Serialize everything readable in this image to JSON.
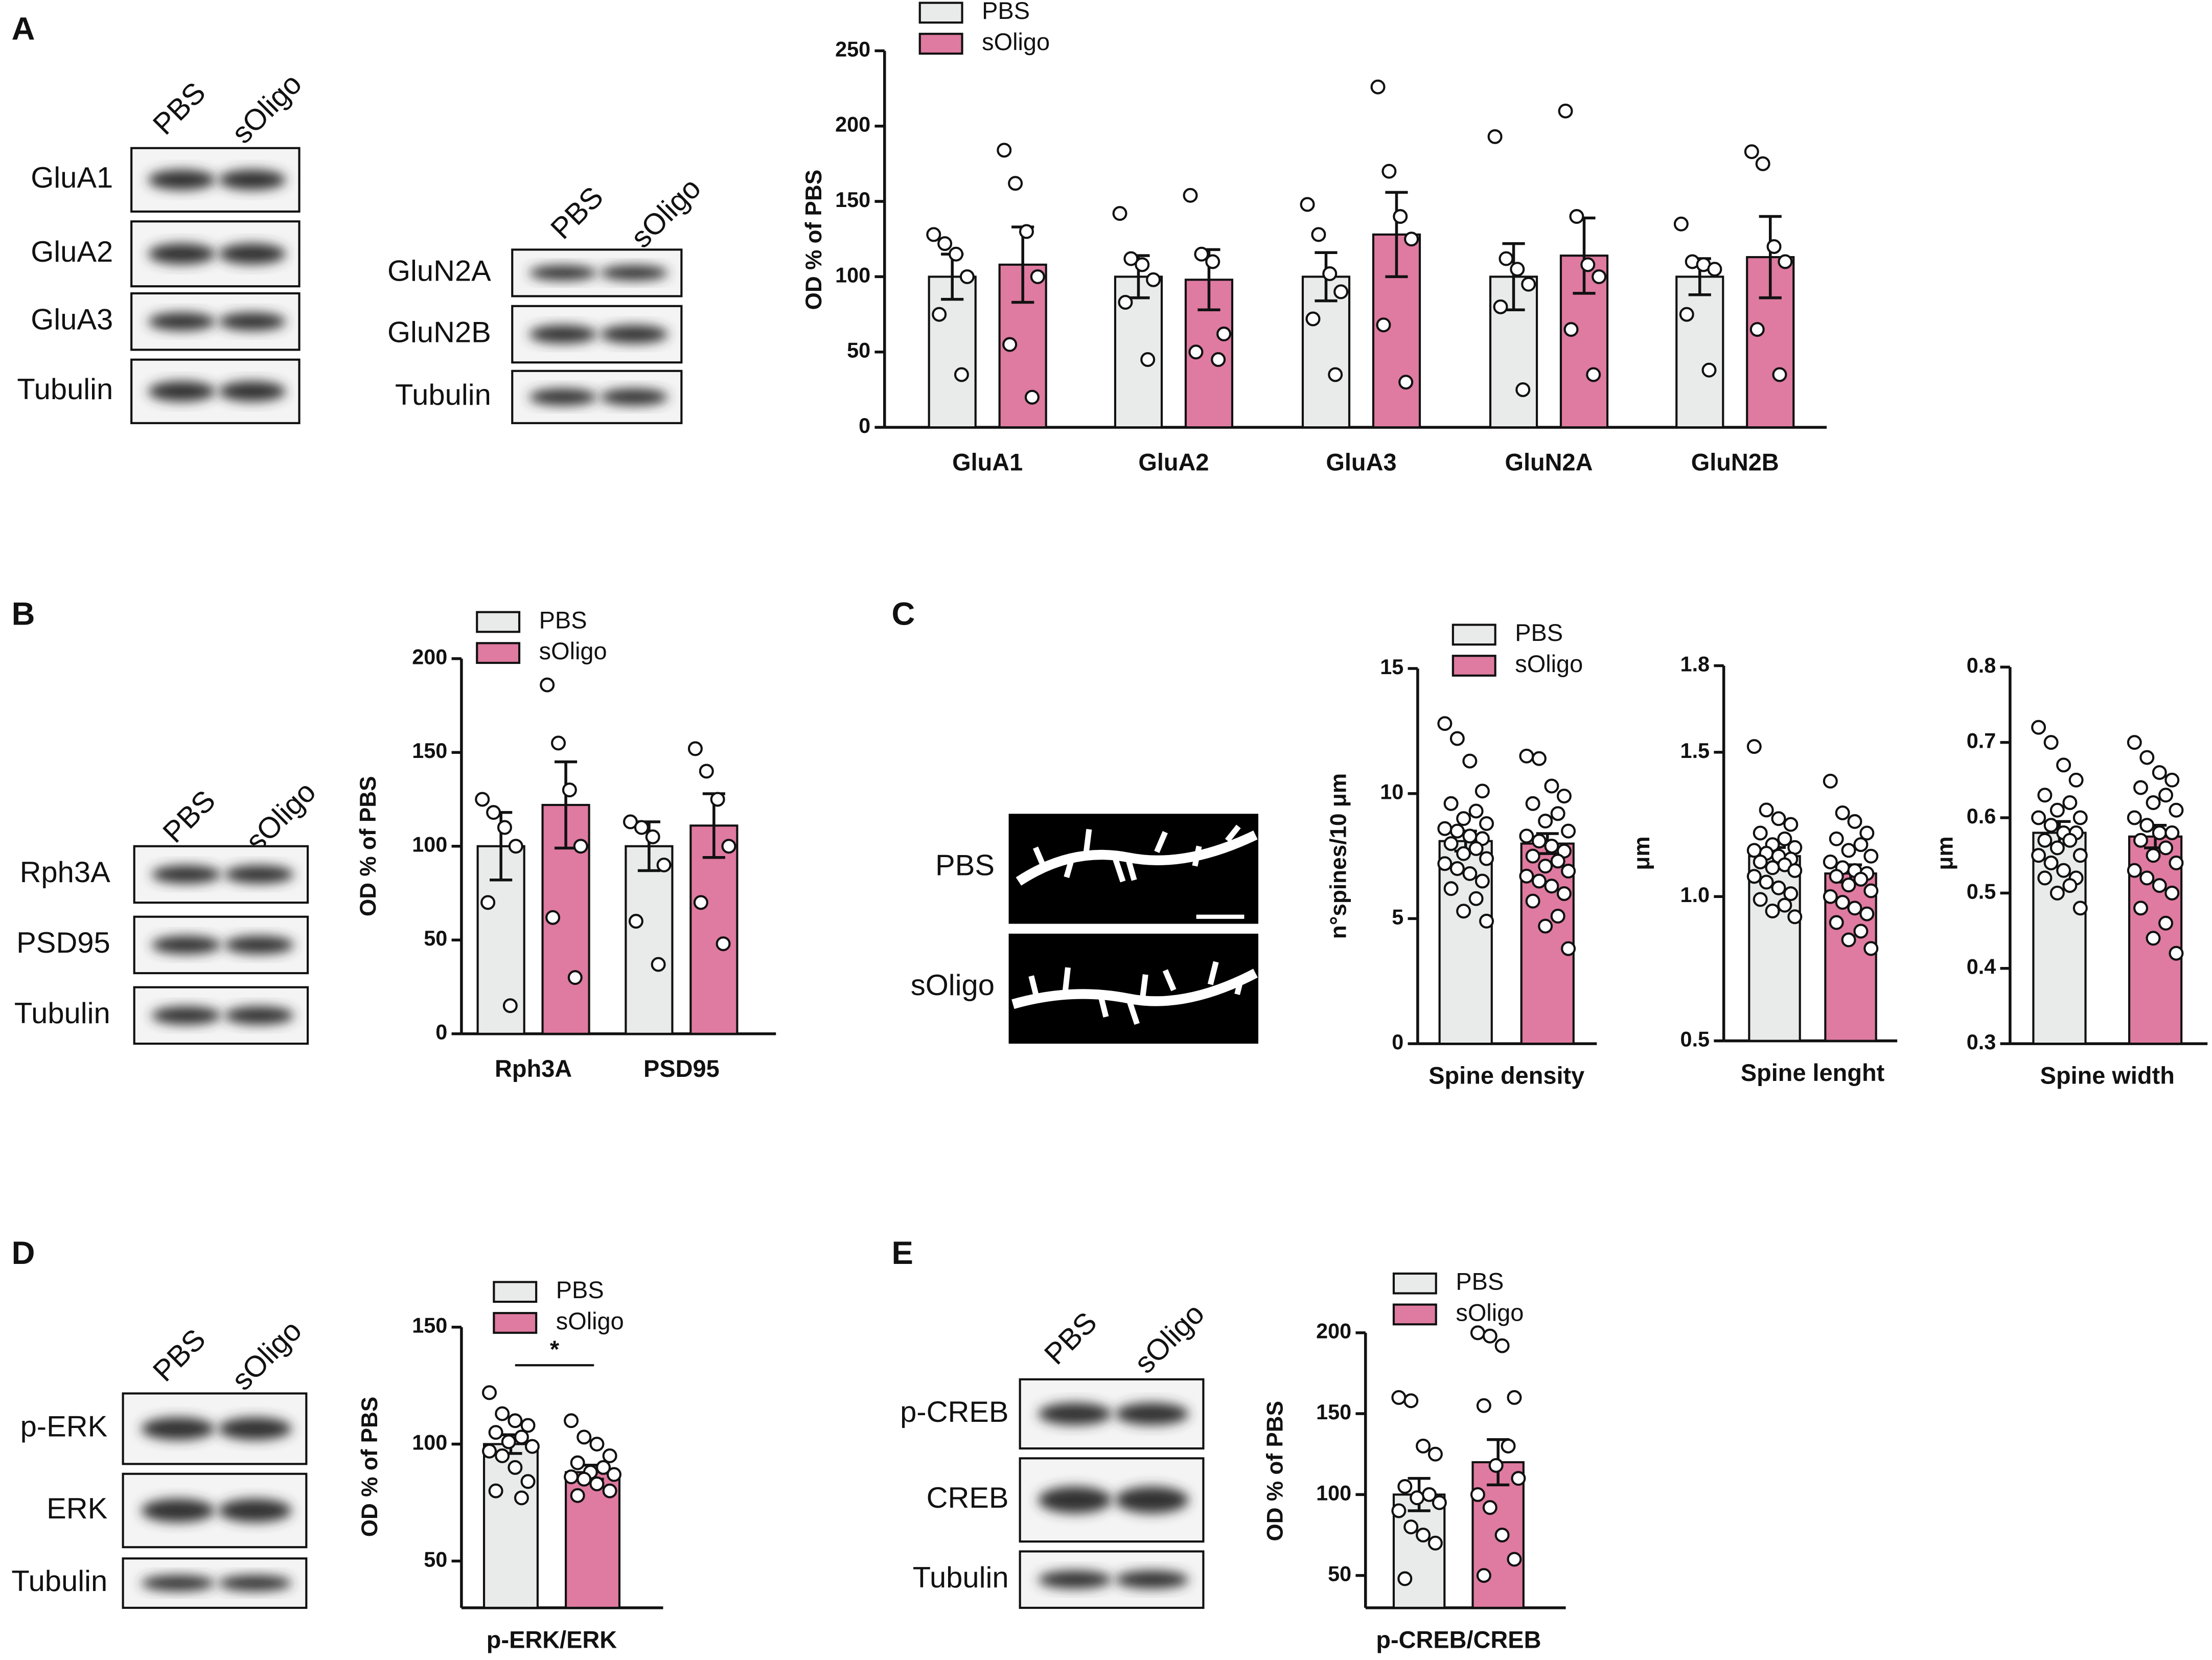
{
  "panels": [
    "A",
    "B",
    "C",
    "D",
    "E"
  ],
  "blots": [
    {
      "lanes": [
        "PBS",
        "sOligo"
      ],
      "bands": [
        "GluA1",
        "GluA2",
        "GluA3",
        "Tubulin"
      ]
    },
    {
      "lanes": [
        "PBS",
        "sOligo"
      ],
      "bands": [
        "GluN2A",
        "GluN2B",
        "Tubulin"
      ]
    },
    {
      "lanes": [
        "PBS",
        "sOligo"
      ],
      "bands": [
        "Rph3A",
        "PSD95",
        "Tubulin"
      ]
    },
    {
      "lanes": [
        "PBS",
        "sOligo"
      ],
      "bands": [
        "p-ERK",
        "ERK",
        "Tubulin"
      ]
    },
    {
      "lanes": [
        "PBS",
        "sOligo"
      ],
      "bands": [
        "p-CREB",
        "CREB",
        "Tubulin"
      ]
    }
  ],
  "micrograph": {
    "rows": [
      "PBS",
      "sOligo"
    ]
  },
  "chart_data": [
    {
      "type": "bar",
      "ylabel": "OD % of PBS",
      "categories": [
        "GluA1",
        "GluA2",
        "GluA3",
        "GluN2A",
        "GluN2B"
      ],
      "ylim": [
        0,
        250
      ],
      "yticks": [
        0,
        50,
        100,
        150,
        200,
        250
      ],
      "series": [
        {
          "name": "PBS",
          "color": "#e9ebeb",
          "values": [
            100,
            100,
            100,
            100,
            100
          ],
          "errors": [
            15,
            14,
            16,
            22,
            12
          ],
          "points": [
            [
              128,
              122,
              115,
              100,
              75,
              35
            ],
            [
              142,
              112,
              108,
              98,
              83,
              45
            ],
            [
              148,
              128,
              102,
              90,
              72,
              35
            ],
            [
              193,
              112,
              105,
              95,
              80,
              25
            ],
            [
              135,
              110,
              108,
              105,
              75,
              38
            ]
          ]
        },
        {
          "name": "sOligo",
          "color": "#df7aa0",
          "values": [
            108,
            98,
            128,
            114,
            113
          ],
          "errors": [
            25,
            20,
            28,
            25,
            27
          ],
          "points": [
            [
              184,
              162,
              130,
              100,
              55,
              20
            ],
            [
              154,
              115,
              110,
              62,
              50,
              45
            ],
            [
              226,
              170,
              140,
              125,
              68,
              30
            ],
            [
              210,
              140,
              108,
              100,
              65,
              35
            ],
            [
              183,
              175,
              120,
              110,
              65,
              35
            ]
          ]
        }
      ]
    },
    {
      "type": "bar",
      "ylabel": "OD % of PBS",
      "categories": [
        "Rph3A",
        "PSD95"
      ],
      "ylim": [
        0,
        200
      ],
      "yticks": [
        0,
        50,
        100,
        150,
        200
      ],
      "series": [
        {
          "name": "PBS",
          "color": "#e9ebeb",
          "values": [
            100,
            100
          ],
          "errors": [
            18,
            13
          ],
          "points": [
            [
              125,
              118,
              110,
              100,
              70,
              15
            ],
            [
              113,
              110,
              105,
              90,
              60,
              37
            ]
          ]
        },
        {
          "name": "sOligo",
          "color": "#df7aa0",
          "values": [
            122,
            111
          ],
          "errors": [
            23,
            17
          ],
          "points": [
            [
              186,
              155,
              130,
              100,
              62,
              30
            ],
            [
              152,
              140,
              125,
              100,
              70,
              48
            ]
          ]
        }
      ]
    },
    {
      "type": "bar",
      "ylabel": "n°spines/10 μm",
      "xlabel": "Spine density",
      "ylim": [
        0,
        15
      ],
      "yticks": [
        0,
        5,
        10,
        15
      ],
      "series": [
        {
          "name": "PBS",
          "color": "#e9ebeb",
          "values": [
            8.1
          ],
          "errors": [
            0.4
          ],
          "points": [
            [
              12.8,
              12.2,
              11.3,
              10.1,
              9.6,
              9.3,
              9.0,
              8.8,
              8.6,
              8.5,
              8.3,
              8.2,
              8.0,
              7.8,
              7.6,
              7.4,
              7.2,
              7.0,
              6.8,
              6.5,
              6.2,
              5.8,
              5.3,
              4.9
            ]
          ]
        },
        {
          "name": "sOligo",
          "color": "#df7aa0",
          "values": [
            8.0
          ],
          "errors": [
            0.4
          ],
          "points": [
            [
              11.5,
              11.4,
              10.3,
              9.9,
              9.6,
              9.2,
              8.9,
              8.5,
              8.3,
              8.1,
              7.9,
              7.7,
              7.5,
              7.3,
              7.1,
              6.9,
              6.7,
              6.5,
              6.3,
              6.0,
              5.7,
              5.1,
              4.7,
              3.8
            ]
          ]
        }
      ]
    },
    {
      "type": "bar",
      "ylabel": "μm",
      "xlabel": "Spine lenght",
      "ylim": [
        0.5,
        1.8
      ],
      "yticks": [
        0.5,
        {
          "value": 1,
          "label": "1.0"
        },
        1.5,
        1.8
      ],
      "series": [
        {
          "color": "#e9ebeb",
          "values": [
            1.14
          ],
          "errors": [
            0.03
          ],
          "points": [
            [
              1.52,
              1.3,
              1.27,
              1.25,
              1.22,
              1.2,
              1.18,
              1.17,
              1.16,
              1.15,
              1.14,
              1.13,
              1.12,
              1.11,
              1.1,
              1.09,
              1.07,
              1.05,
              1.03,
              1.01,
              0.99,
              0.97,
              0.95,
              0.93
            ]
          ]
        },
        {
          "color": "#df7aa0",
          "values": [
            1.08
          ],
          "errors": [
            0.03
          ],
          "points": [
            [
              1.4,
              1.29,
              1.26,
              1.22,
              1.2,
              1.18,
              1.16,
              1.14,
              1.12,
              1.1,
              1.09,
              1.08,
              1.07,
              1.06,
              1.04,
              1.02,
              1.0,
              0.98,
              0.96,
              0.94,
              0.91,
              0.88,
              0.85,
              0.82
            ]
          ]
        }
      ]
    },
    {
      "type": "bar",
      "ylabel": "μm",
      "xlabel": "Spine width",
      "ylim": [
        0.3,
        0.8
      ],
      "yticks": [
        0.3,
        0.4,
        0.5,
        0.6,
        0.7,
        0.8
      ],
      "series": [
        {
          "color": "#e9ebeb",
          "values": [
            0.58
          ],
          "errors": [
            0.015
          ],
          "points": [
            [
              0.72,
              0.7,
              0.67,
              0.65,
              0.63,
              0.62,
              0.61,
              0.6,
              0.6,
              0.59,
              0.58,
              0.58,
              0.57,
              0.57,
              0.56,
              0.55,
              0.55,
              0.54,
              0.53,
              0.52,
              0.52,
              0.51,
              0.5,
              0.48
            ]
          ]
        },
        {
          "color": "#df7aa0",
          "values": [
            0.575
          ],
          "errors": [
            0.015
          ],
          "points": [
            [
              0.7,
              0.68,
              0.66,
              0.65,
              0.64,
              0.63,
              0.62,
              0.61,
              0.6,
              0.59,
              0.58,
              0.58,
              0.57,
              0.56,
              0.55,
              0.54,
              0.53,
              0.52,
              0.51,
              0.5,
              0.48,
              0.46,
              0.44,
              0.42
            ]
          ]
        }
      ]
    },
    {
      "type": "bar",
      "ylabel": "OD % of PBS",
      "xlabel": "p-ERK/ERK",
      "annotations": [
        "*"
      ],
      "ylim": [
        30,
        150
      ],
      "yticks": [
        50,
        100,
        150
      ],
      "series": [
        {
          "name": "PBS",
          "color": "#e9ebeb",
          "values": [
            100
          ],
          "errors": [
            4
          ],
          "points": [
            [
              122,
              113,
              110,
              108,
              105,
              103,
              101,
              99,
              97,
              95,
              90,
              84,
              80,
              77
            ]
          ]
        },
        {
          "name": "sOligo",
          "color": "#df7aa0",
          "values": [
            88
          ],
          "errors": [
            3
          ],
          "points": [
            [
              110,
              103,
              100,
              95,
              92,
              90,
              88,
              87,
              86,
              85,
              83,
              80,
              78
            ]
          ]
        }
      ]
    },
    {
      "type": "bar",
      "ylabel": "OD % of PBS",
      "xlabel": "p-CREB/CREB",
      "ylim": [
        30,
        200
      ],
      "yticks": [
        50,
        100,
        150,
        200
      ],
      "series": [
        {
          "name": "PBS",
          "color": "#e9ebeb",
          "values": [
            100
          ],
          "errors": [
            10
          ],
          "points": [
            [
              160,
              158,
              130,
              125,
              105,
              100,
              98,
              95,
              90,
              80,
              75,
              70,
              48
            ]
          ]
        },
        {
          "name": "sOligo",
          "color": "#df7aa0",
          "values": [
            120
          ],
          "errors": [
            14
          ],
          "points": [
            [
              200,
              198,
              192,
              160,
              155,
              130,
              118,
              110,
              100,
              92,
              75,
              60,
              50
            ]
          ]
        }
      ]
    }
  ]
}
